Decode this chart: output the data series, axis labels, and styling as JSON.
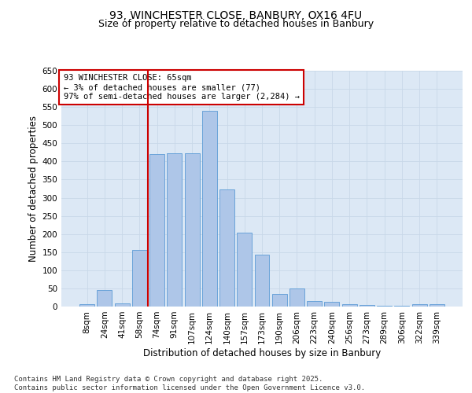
{
  "title1": "93, WINCHESTER CLOSE, BANBURY, OX16 4FU",
  "title2": "Size of property relative to detached houses in Banbury",
  "xlabel": "Distribution of detached houses by size in Banbury",
  "ylabel": "Number of detached properties",
  "categories": [
    "8sqm",
    "24sqm",
    "41sqm",
    "58sqm",
    "74sqm",
    "91sqm",
    "107sqm",
    "124sqm",
    "140sqm",
    "157sqm",
    "173sqm",
    "190sqm",
    "206sqm",
    "223sqm",
    "240sqm",
    "256sqm",
    "273sqm",
    "289sqm",
    "306sqm",
    "322sqm",
    "339sqm"
  ],
  "values": [
    7,
    45,
    8,
    155,
    420,
    423,
    423,
    540,
    323,
    203,
    143,
    35,
    50,
    15,
    13,
    7,
    4,
    3,
    2,
    7,
    7
  ],
  "bar_color": "#aec6e8",
  "bar_edge_color": "#5b9bd5",
  "grid_color": "#c8d8e8",
  "background_color": "#dce8f5",
  "vline_x": 3.5,
  "vline_color": "#cc0000",
  "annotation_text": "93 WINCHESTER CLOSE: 65sqm\n← 3% of detached houses are smaller (77)\n97% of semi-detached houses are larger (2,284) →",
  "annotation_box_color": "#ffffff",
  "annotation_box_edge_color": "#cc0000",
  "ylim": [
    0,
    650
  ],
  "yticks": [
    0,
    50,
    100,
    150,
    200,
    250,
    300,
    350,
    400,
    450,
    500,
    550,
    600,
    650
  ],
  "footer": "Contains HM Land Registry data © Crown copyright and database right 2025.\nContains public sector information licensed under the Open Government Licence v3.0.",
  "title_fontsize": 10,
  "subtitle_fontsize": 9,
  "axis_label_fontsize": 8.5,
  "tick_fontsize": 7.5,
  "annotation_fontsize": 7.5,
  "footer_fontsize": 6.5
}
